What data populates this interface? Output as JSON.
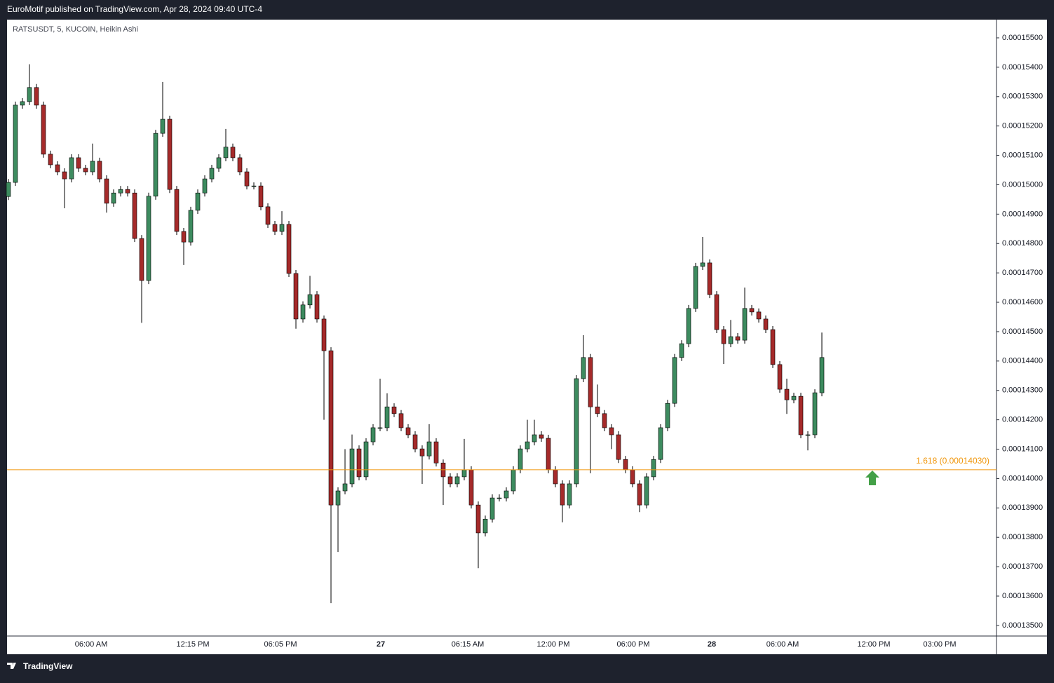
{
  "header": {
    "text": "EuroMotif published on TradingView.com, Apr 28, 2024 09:40 UTC-4"
  },
  "footer": {
    "brand": "TradingView"
  },
  "chart_data": {
    "type": "candlestick",
    "title": "RATSUSDT, 5, KUCOIN, Heikin Ashi",
    "up_color": "#3d8b5f",
    "down_color": "#a52a2a",
    "open": [
      0.0001496,
      0.00015008,
      0.00015271,
      0.00015283,
      0.00015331,
      0.00015271,
      0.00015104,
      0.00015068,
      0.00015044,
      0.0001502,
      0.00015092,
      0.00015056,
      0.00015044,
      0.0001508,
      0.0001502,
      0.00014937,
      0.00014972,
      0.00014984,
      0.00014972,
      0.00014817,
      0.00014674,
      0.00014961,
      0.00015175,
      0.00015223,
      0.00014984,
      0.00014841,
      0.00014805,
      0.00014913,
      0.00014972,
      0.0001502,
      0.00015056,
      0.00015092,
      0.00015128,
      0.00015092,
      0.00015044,
      0.00014996,
      0.00014996,
      0.00014925,
      0.00014865,
      0.00014841,
      0.00014865,
      0.00014698,
      0.00014543,
      0.00014591,
      0.00014626,
      0.00014543,
      0.00014435,
      0.0001391,
      0.00013958,
      0.00013982,
      0.00014101,
      0.00014006,
      0.00014125,
      0.00014173,
      0.00014173,
      0.00014244,
      0.00014221,
      0.00014173,
      0.00014149,
      0.00014101,
      0.00014077,
      0.00014125,
      0.00014053,
      0.00014006,
      0.00013982,
      0.00014006,
      0.0001403,
      0.0001391,
      0.00013815,
      0.00013862,
      0.00013934,
      0.00013934,
      0.00013958,
      0.0001403,
      0.00014101,
      0.00014125,
      0.00014149,
      0.00014137,
      0.0001403,
      0.00013982,
      0.0001391,
      0.00013982,
      0.0001434,
      0.00014412,
      0.00014244,
      0.00014221,
      0.00014173,
      0.00014149,
      0.00014065,
      0.0001403,
      0.00013982,
      0.0001391,
      0.00014006,
      0.00014065,
      0.00014173,
      0.00014256,
      0.00014412,
      0.00014459,
      0.00014579,
      0.00014722,
      0.00014734,
      0.00014626,
      0.00014507,
      0.00014459,
      0.00014483,
      0.00014471,
      0.00014579,
      0.00014567,
      0.00014543,
      0.00014507,
      0.00014388,
      0.00014304,
      0.00014268,
      0.0001428,
      0.00014149,
      0.00014149,
      0.00014292
    ],
    "high": [
      0.0001502,
      0.00015283,
      0.00015295,
      0.0001541,
      0.00015343,
      0.00015283,
      0.00015116,
      0.0001508,
      0.00015056,
      0.00015104,
      0.00015104,
      0.00015068,
      0.0001514,
      0.00015092,
      0.00015032,
      0.00014984,
      0.00014996,
      0.00014996,
      0.00014984,
      0.00014829,
      0.00014973,
      0.00015187,
      0.0001535,
      0.00015235,
      0.00014996,
      0.00014853,
      0.00014925,
      0.00014984,
      0.00015032,
      0.00015068,
      0.00015104,
      0.0001519,
      0.0001514,
      0.00015104,
      0.00015056,
      0.00015008,
      0.00015008,
      0.00014937,
      0.00014877,
      0.0001491,
      0.00014877,
      0.0001471,
      0.00014603,
      0.0001469,
      0.00014638,
      0.00014555,
      0.00014447,
      0.0001397,
      0.000141,
      0.0001415,
      0.00014113,
      0.00014137,
      0.00014185,
      0.0001434,
      0.0001429,
      0.00014256,
      0.00014233,
      0.00014185,
      0.00014161,
      0.00014113,
      0.00014185,
      0.00014137,
      0.00014065,
      0.00014018,
      0.00014018,
      0.00014135,
      0.00014042,
      0.00013922,
      0.00013874,
      0.00013946,
      0.00013946,
      0.0001397,
      0.00014042,
      0.00014113,
      0.000142,
      0.000142,
      0.00014161,
      0.00014149,
      0.00014042,
      0.00013994,
      0.00013994,
      0.00014352,
      0.00014488,
      0.00014424,
      0.0001432,
      0.00014233,
      0.00014185,
      0.00014161,
      0.00014077,
      0.00014042,
      0.00013994,
      0.00014018,
      0.00014077,
      0.00014185,
      0.00014268,
      0.00014424,
      0.00014471,
      0.00014591,
      0.00014734,
      0.00014822,
      0.00014746,
      0.00014638,
      0.00014519,
      0.0001454,
      0.00014495,
      0.0001465,
      0.00014591,
      0.00014579,
      0.00014555,
      0.00014519,
      0.000144,
      0.0001434,
      0.00014292,
      0.00014292,
      0.00014161,
      0.00014304,
      0.00014497
    ],
    "low": [
      0.00014948,
      0.00014996,
      0.00015259,
      0.00015271,
      0.00015259,
      0.00015092,
      0.00015056,
      0.00015032,
      0.0001492,
      0.00015008,
      0.00015044,
      0.00015032,
      0.00015032,
      0.00015008,
      0.00014905,
      0.00014925,
      0.0001496,
      0.0001496,
      0.00014805,
      0.0001453,
      0.00014662,
      0.00014949,
      0.00015163,
      0.00014972,
      0.00014829,
      0.00014727,
      0.00014793,
      0.00014901,
      0.0001496,
      0.00015008,
      0.00015044,
      0.0001508,
      0.0001508,
      0.00015032,
      0.00014984,
      0.00014984,
      0.00014913,
      0.00014853,
      0.00014829,
      0.00014829,
      0.00014686,
      0.0001451,
      0.00014531,
      0.00014579,
      0.00014531,
      0.000142,
      0.00013576,
      0.0001375,
      0.00013946,
      0.0001397,
      0.00013994,
      0.00013994,
      0.00014113,
      0.00014161,
      0.00014161,
      0.00014209,
      0.00014161,
      0.00014137,
      0.00014089,
      0.00013982,
      0.00014065,
      0.00014041,
      0.0001391,
      0.0001397,
      0.0001397,
      0.00013994,
      0.00013898,
      0.00013695,
      0.00013803,
      0.0001385,
      0.00013922,
      0.00013922,
      0.00013946,
      0.00014018,
      0.00014089,
      0.00014113,
      0.00014125,
      0.00014018,
      0.0001397,
      0.00013851,
      0.00013898,
      0.0001397,
      0.00014328,
      0.00014018,
      0.00014209,
      0.00014161,
      0.000141,
      0.00014053,
      0.00014018,
      0.0001397,
      0.00013886,
      0.00013898,
      0.00013994,
      0.00014053,
      0.00014161,
      0.00014244,
      0.000144,
      0.00014447,
      0.00014567,
      0.0001471,
      0.00014614,
      0.00014495,
      0.0001439,
      0.00014447,
      0.00014459,
      0.00014459,
      0.00014555,
      0.00014531,
      0.00014495,
      0.00014376,
      0.00014292,
      0.0001422,
      0.00014256,
      0.00014137,
      0.00014096,
      0.00014137,
      0.0001428
    ],
    "close": [
      0.00015008,
      0.00015271,
      0.00015283,
      0.00015331,
      0.00015271,
      0.00015104,
      0.00015068,
      0.00015044,
      0.0001502,
      0.00015092,
      0.00015056,
      0.00015044,
      0.0001508,
      0.0001502,
      0.00014937,
      0.00014972,
      0.00014984,
      0.00014972,
      0.00014817,
      0.00014674,
      0.00014961,
      0.00015175,
      0.00015223,
      0.00014984,
      0.00014841,
      0.00014805,
      0.00014913,
      0.00014972,
      0.0001502,
      0.00015056,
      0.00015092,
      0.00015128,
      0.00015092,
      0.00015044,
      0.00014996,
      0.00014996,
      0.00014925,
      0.00014865,
      0.00014841,
      0.00014865,
      0.00014698,
      0.00014543,
      0.00014591,
      0.00014626,
      0.00014543,
      0.00014435,
      0.0001391,
      0.00013958,
      0.00013982,
      0.00014101,
      0.00014006,
      0.00014125,
      0.00014173,
      0.00014173,
      0.00014244,
      0.00014221,
      0.00014173,
      0.00014149,
      0.00014101,
      0.00014077,
      0.00014125,
      0.00014053,
      0.00014006,
      0.00013982,
      0.00014006,
      0.0001403,
      0.0001391,
      0.00013815,
      0.00013862,
      0.00013934,
      0.00013934,
      0.00013958,
      0.0001403,
      0.00014101,
      0.00014125,
      0.00014149,
      0.00014137,
      0.0001403,
      0.00013982,
      0.0001391,
      0.00013982,
      0.0001434,
      0.00014412,
      0.00014244,
      0.00014221,
      0.00014173,
      0.00014149,
      0.00014065,
      0.0001403,
      0.00013982,
      0.0001391,
      0.00014006,
      0.00014065,
      0.00014173,
      0.00014256,
      0.00014412,
      0.00014459,
      0.00014579,
      0.00014722,
      0.00014734,
      0.00014626,
      0.00014507,
      0.00014459,
      0.00014483,
      0.00014471,
      0.00014579,
      0.00014567,
      0.00014543,
      0.00014507,
      0.00014388,
      0.00014304,
      0.00014268,
      0.0001428,
      0.00014149,
      0.00014149,
      0.00014292,
      0.00014412
    ],
    "ylim": [
      0.00013464,
      0.00015562
    ],
    "yticks": [
      {
        "value": 0.000135,
        "label": "0.00013500"
      },
      {
        "value": 0.000136,
        "label": "0.00013600"
      },
      {
        "value": 0.000137,
        "label": "0.00013700"
      },
      {
        "value": 0.000138,
        "label": "0.00013800"
      },
      {
        "value": 0.000139,
        "label": "0.00013900"
      },
      {
        "value": 0.00014,
        "label": "0.00014000"
      },
      {
        "value": 0.000141,
        "label": "0.00014100"
      },
      {
        "value": 0.000142,
        "label": "0.00014200"
      },
      {
        "value": 0.000143,
        "label": "0.00014300"
      },
      {
        "value": 0.000144,
        "label": "0.00014400"
      },
      {
        "value": 0.000145,
        "label": "0.00014500"
      },
      {
        "value": 0.000146,
        "label": "0.00014600"
      },
      {
        "value": 0.000147,
        "label": "0.00014700"
      },
      {
        "value": 0.000148,
        "label": "0.00014800"
      },
      {
        "value": 0.000149,
        "label": "0.00014900"
      },
      {
        "value": 0.00015,
        "label": "0.00015000"
      },
      {
        "value": 0.000151,
        "label": "0.00015100"
      },
      {
        "value": 0.000152,
        "label": "0.00015200"
      },
      {
        "value": 0.000153,
        "label": "0.00015300"
      },
      {
        "value": 0.000154,
        "label": "0.00015400"
      },
      {
        "value": 0.000155,
        "label": "0.00015500"
      }
    ],
    "time_labels": [
      "06:00 AM",
      "12:15 PM",
      "06:05 PM",
      "27",
      "06:15 AM",
      "12:00 PM",
      "06:00 PM",
      "28",
      "06:00 AM",
      "12:00 PM",
      "03:00 PM"
    ],
    "hline": {
      "value": 0.0001403,
      "label": "1.618 (0.00014030)",
      "color": "#f0960a"
    }
  }
}
